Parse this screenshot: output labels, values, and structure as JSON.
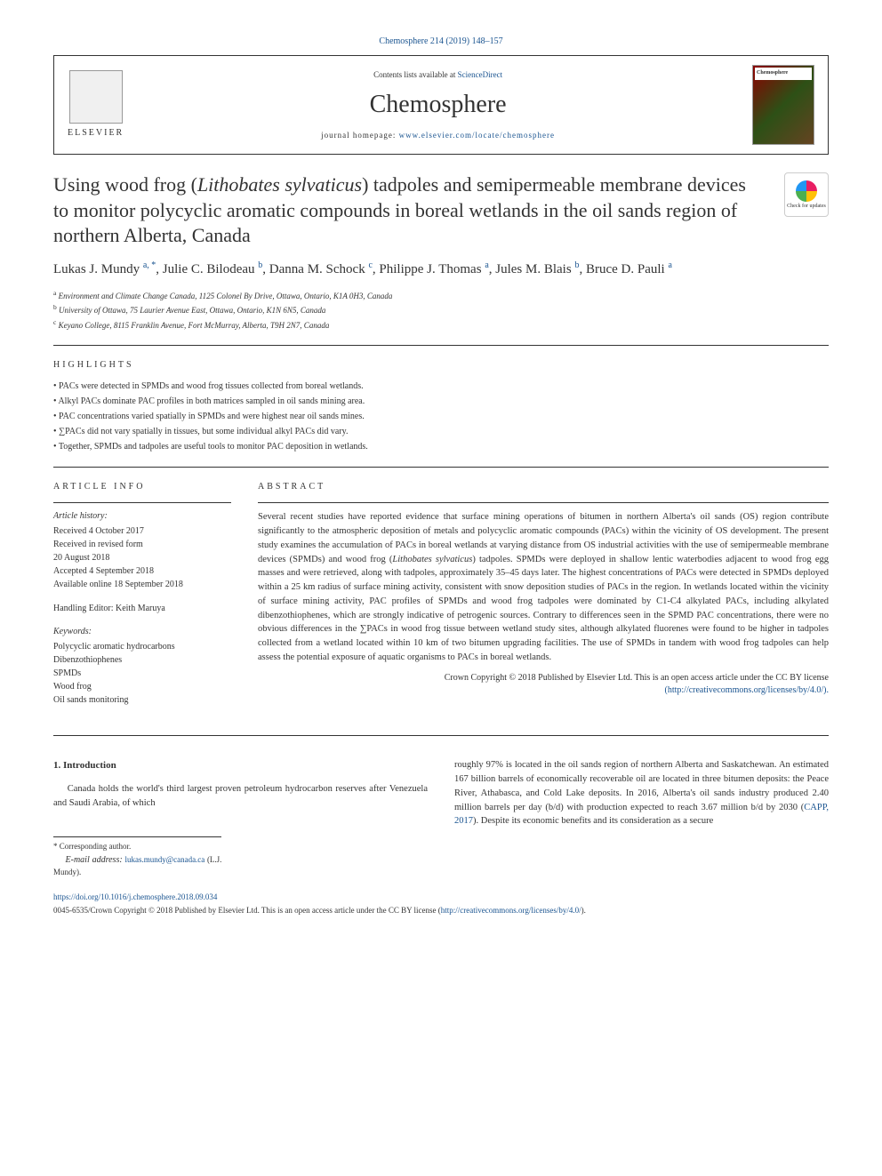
{
  "citation": "Chemosphere 214 (2019) 148–157",
  "header": {
    "publisher": "ELSEVIER",
    "contents_prefix": "Contents lists available at ",
    "contents_link": "ScienceDirect",
    "journal": "Chemosphere",
    "homepage_prefix": "journal homepage: ",
    "homepage_link": "www.elsevier.com/locate/chemosphere",
    "cover_label": "Chemosphere"
  },
  "check_updates": "Check for updates",
  "title": {
    "prefix": "Using wood frog (",
    "species": "Lithobates sylvaticus",
    "suffix": ") tadpoles and semipermeable membrane devices to monitor polycyclic aromatic compounds in boreal wetlands in the oil sands region of northern Alberta, Canada"
  },
  "authors": [
    {
      "name": "Lukas J. Mundy",
      "sup": "a, *"
    },
    {
      "name": "Julie C. Bilodeau",
      "sup": "b"
    },
    {
      "name": "Danna M. Schock",
      "sup": "c"
    },
    {
      "name": "Philippe J. Thomas",
      "sup": "a"
    },
    {
      "name": "Jules M. Blais",
      "sup": "b"
    },
    {
      "name": "Bruce D. Pauli",
      "sup": "a"
    }
  ],
  "affiliations": [
    {
      "sup": "a",
      "text": "Environment and Climate Change Canada, 1125 Colonel By Drive, Ottawa, Ontario, K1A 0H3, Canada"
    },
    {
      "sup": "b",
      "text": "University of Ottawa, 75 Laurier Avenue East, Ottawa, Ontario, K1N 6N5, Canada"
    },
    {
      "sup": "c",
      "text": "Keyano College, 8115 Franklin Avenue, Fort McMurray, Alberta, T9H 2N7, Canada"
    }
  ],
  "highlights_heading": "HIGHLIGHTS",
  "highlights": [
    "PACs were detected in SPMDs and wood frog tissues collected from boreal wetlands.",
    "Alkyl PACs dominate PAC profiles in both matrices sampled in oil sands mining area.",
    "PAC concentrations varied spatially in SPMDs and were highest near oil sands mines.",
    "∑PACs did not vary spatially in tissues, but some individual alkyl PACs did vary.",
    "Together, SPMDs and tadpoles are useful tools to monitor PAC deposition in wetlands."
  ],
  "article_info_heading": "ARTICLE INFO",
  "article_history_label": "Article history:",
  "article_history": "Received 4 October 2017\nReceived in revised form\n20 August 2018\nAccepted 4 September 2018\nAvailable online 18 September 2018",
  "handling_editor": "Handling Editor: Keith Maruya",
  "keywords_label": "Keywords:",
  "keywords": [
    "Polycyclic aromatic hydrocarbons",
    "Dibenzothiophenes",
    "SPMDs",
    "Wood frog",
    "Oil sands monitoring"
  ],
  "abstract_heading": "ABSTRACT",
  "abstract": {
    "p1": "Several recent studies have reported evidence that surface mining operations of bitumen in northern Alberta's oil sands (OS) region contribute significantly to the atmospheric deposition of metals and polycyclic aromatic compounds (PACs) within the vicinity of OS development. The present study examines the accumulation of PACs in boreal wetlands at varying distance from OS industrial activities with the use of semipermeable membrane devices (SPMDs) and wood frog (",
    "species": "Lithobates sylvaticus",
    "p2": ") tadpoles. SPMDs were deployed in shallow lentic waterbodies adjacent to wood frog egg masses and were retrieved, along with tadpoles, approximately 35–45 days later. The highest concentrations of PACs were detected in SPMDs deployed within a 25 km radius of surface mining activity, consistent with snow deposition studies of PACs in the region. In wetlands located within the vicinity of surface mining activity, PAC profiles of SPMDs and wood frog tadpoles were dominated by C1-C4 alkylated PACs, including alkylated dibenzothiophenes, which are strongly indicative of petrogenic sources. Contrary to differences seen in the SPMD PAC concentrations, there were no obvious differences in the ∑PACs in wood frog tissue between wetland study sites, although alkylated fluorenes were found to be higher in tadpoles collected from a wetland located within 10 km of two bitumen upgrading facilities. The use of SPMDs in tandem with wood frog tadpoles can help assess the potential exposure of aquatic organisms to PACs in boreal wetlands."
  },
  "copyright": {
    "line1": "Crown Copyright © 2018 Published by Elsevier Ltd. This is an open access article under the CC BY license",
    "link": "(http://creativecommons.org/licenses/by/4.0/)."
  },
  "introduction_heading": "1. Introduction",
  "intro_col1": "Canada holds the world's third largest proven petroleum hydrocarbon reserves after Venezuela and Saudi Arabia, of which",
  "intro_col2_p1": "roughly 97% is located in the oil sands region of northern Alberta and Saskatchewan. An estimated 167 billion barrels of economically recoverable oil are located in three bitumen deposits: the Peace River, Athabasca, and Cold Lake deposits. In 2016, Alberta's oil sands industry produced 2.40 million barrels per day (b/d) with production expected to reach 3.67 million b/d by 2030 (",
  "intro_ref": "CAPP, 2017",
  "intro_col2_p2": "). Despite its economic benefits and its consideration as a secure",
  "corresponding": {
    "label": "* Corresponding author.",
    "email_label": "E-mail address: ",
    "email": "lukas.mundy@canada.ca",
    "name": " (L.J. Mundy)."
  },
  "footer": {
    "doi": "https://doi.org/10.1016/j.chemosphere.2018.09.034",
    "copyright": "0045-6535/Crown Copyright © 2018 Published by Elsevier Ltd. This is an open access article under the CC BY license (",
    "cc_link": "http://creativecommons.org/licenses/by/4.0/",
    "copyright_end": ")."
  },
  "colors": {
    "link": "#1a5490",
    "text": "#333333",
    "border": "#333333"
  }
}
